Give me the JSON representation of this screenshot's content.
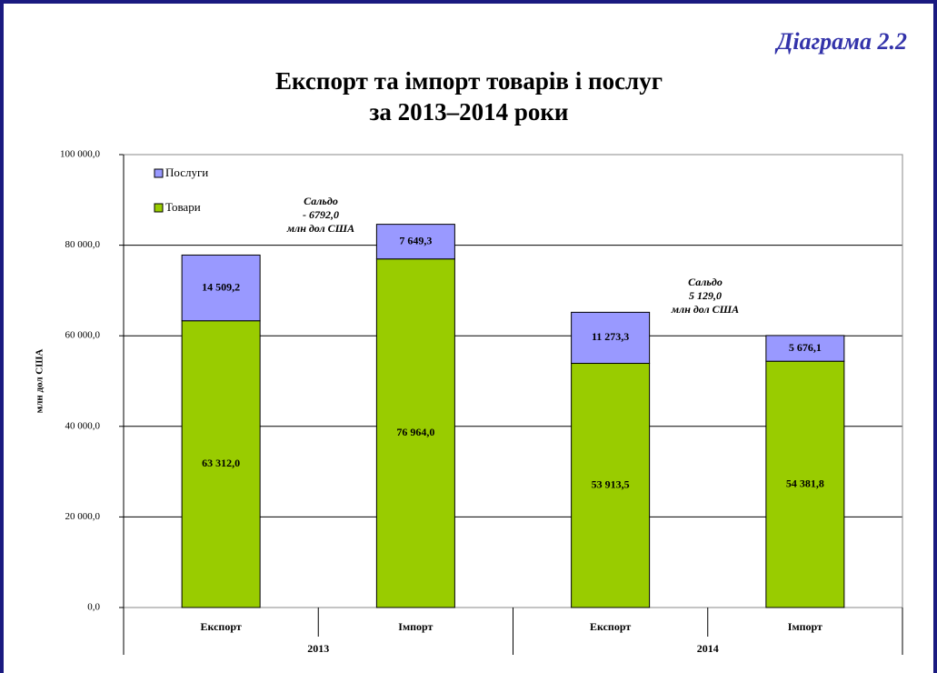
{
  "chart_data": {
    "type": "bar",
    "stacked": true,
    "label": "Діаграма 2.2",
    "title": "Експорт та імпорт товарів і послуг",
    "subtitle": "за 2013–2014 роки",
    "y_label": "млн дол США",
    "categories": [
      "Експорт",
      "Імпорт",
      "Експорт",
      "Імпорт"
    ],
    "groups": [
      "2013",
      "2014"
    ],
    "series": [
      {
        "name": "Товари",
        "color": "#99cc00",
        "values": [
          63312.0,
          76964.0,
          53913.5,
          54381.8
        ],
        "value_labels": [
          "63 312,0",
          "76 964,0",
          "53 913,5",
          "54 381,8"
        ]
      },
      {
        "name": "Послуги",
        "color": "#9999ff",
        "values": [
          14509.2,
          7649.3,
          11273.3,
          5676.1
        ],
        "value_labels": [
          "14 509,2",
          "7 649,3",
          "11 273,3",
          "5 676,1"
        ]
      }
    ],
    "ylim": [
      0,
      100000
    ],
    "yticks": [
      {
        "value": 0,
        "label": "0,0"
      },
      {
        "value": 20000,
        "label": "20 000,0"
      },
      {
        "value": 40000,
        "label": "40 000,0"
      },
      {
        "value": 60000,
        "label": "60 000,0"
      },
      {
        "value": 80000,
        "label": "80 000,0"
      },
      {
        "value": 100000,
        "label": "100 000,0"
      }
    ],
    "grid": true,
    "legend": "top-left",
    "annotations": [
      [
        "Сальдо",
        "- 6792,0",
        "млн дол США"
      ],
      [
        "Сальдо",
        "5 129,0",
        "млн дол США"
      ]
    ]
  }
}
